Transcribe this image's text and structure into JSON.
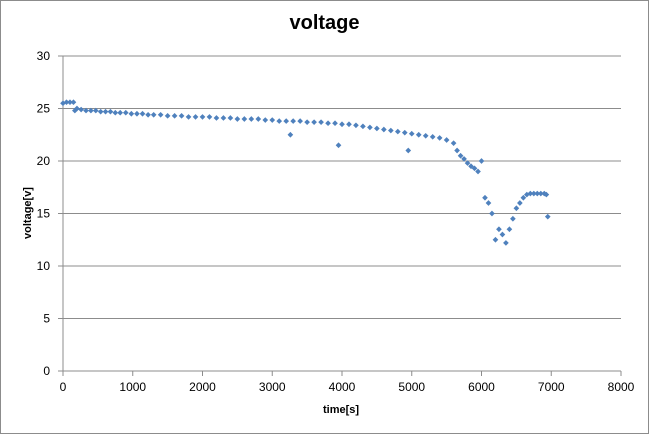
{
  "chart_data": {
    "type": "scatter",
    "title": "voltage",
    "xlabel": "time[s]",
    "ylabel": "voltage[v]",
    "xlim": [
      0,
      8000
    ],
    "ylim": [
      0,
      30
    ],
    "xticks": [
      0,
      1000,
      2000,
      3000,
      4000,
      5000,
      6000,
      7000,
      8000
    ],
    "yticks": [
      0,
      5,
      10,
      15,
      20,
      25,
      30
    ],
    "grid": "horizontal",
    "legend": "none",
    "marker_color": "#4f81bd",
    "series": [
      {
        "values_description_free": true,
        "x": [
          0,
          50,
          100,
          150,
          170,
          200,
          260,
          330,
          400,
          470,
          540,
          610,
          680,
          750,
          820,
          900,
          980,
          1060,
          1140,
          1220,
          1300,
          1400,
          1500,
          1600,
          1700,
          1800,
          1900,
          2000,
          2100,
          2200,
          2300,
          2400,
          2500,
          2600,
          2700,
          2800,
          2900,
          3000,
          3100,
          3200,
          3260,
          3300,
          3400,
          3500,
          3600,
          3700,
          3800,
          3900,
          3950,
          4000,
          4100,
          4200,
          4300,
          4400,
          4500,
          4600,
          4700,
          4800,
          4900,
          4950,
          5000,
          5100,
          5200,
          5300,
          5400,
          5500,
          5600,
          5650,
          5700,
          5750,
          5800,
          5850,
          5900,
          5950,
          6000,
          6050,
          6100,
          6150,
          6200,
          6250,
          6300,
          6350,
          6400,
          6450,
          6500,
          6550,
          6600,
          6650,
          6700,
          6750,
          6800,
          6850,
          6900,
          6930,
          6950
        ],
        "y": [
          25.5,
          25.6,
          25.6,
          25.6,
          24.8,
          25.0,
          24.9,
          24.8,
          24.8,
          24.8,
          24.7,
          24.7,
          24.7,
          24.6,
          24.6,
          24.6,
          24.5,
          24.5,
          24.5,
          24.4,
          24.4,
          24.4,
          24.3,
          24.3,
          24.3,
          24.2,
          24.2,
          24.2,
          24.2,
          24.1,
          24.1,
          24.1,
          24.0,
          24.0,
          24.0,
          24.0,
          23.9,
          23.9,
          23.8,
          23.8,
          22.5,
          23.8,
          23.8,
          23.7,
          23.7,
          23.7,
          23.6,
          23.6,
          21.5,
          23.5,
          23.5,
          23.4,
          23.3,
          23.2,
          23.1,
          23.0,
          22.9,
          22.8,
          22.7,
          21.0,
          22.6,
          22.5,
          22.4,
          22.3,
          22.2,
          22.0,
          21.7,
          21.0,
          20.5,
          20.2,
          19.8,
          19.5,
          19.3,
          19.0,
          20.0,
          16.5,
          16.0,
          15.0,
          12.5,
          13.5,
          13.0,
          12.2,
          13.5,
          14.5,
          15.5,
          16.0,
          16.5,
          16.8,
          16.9,
          16.9,
          16.9,
          16.9,
          16.9,
          16.8,
          14.7
        ]
      }
    ]
  }
}
